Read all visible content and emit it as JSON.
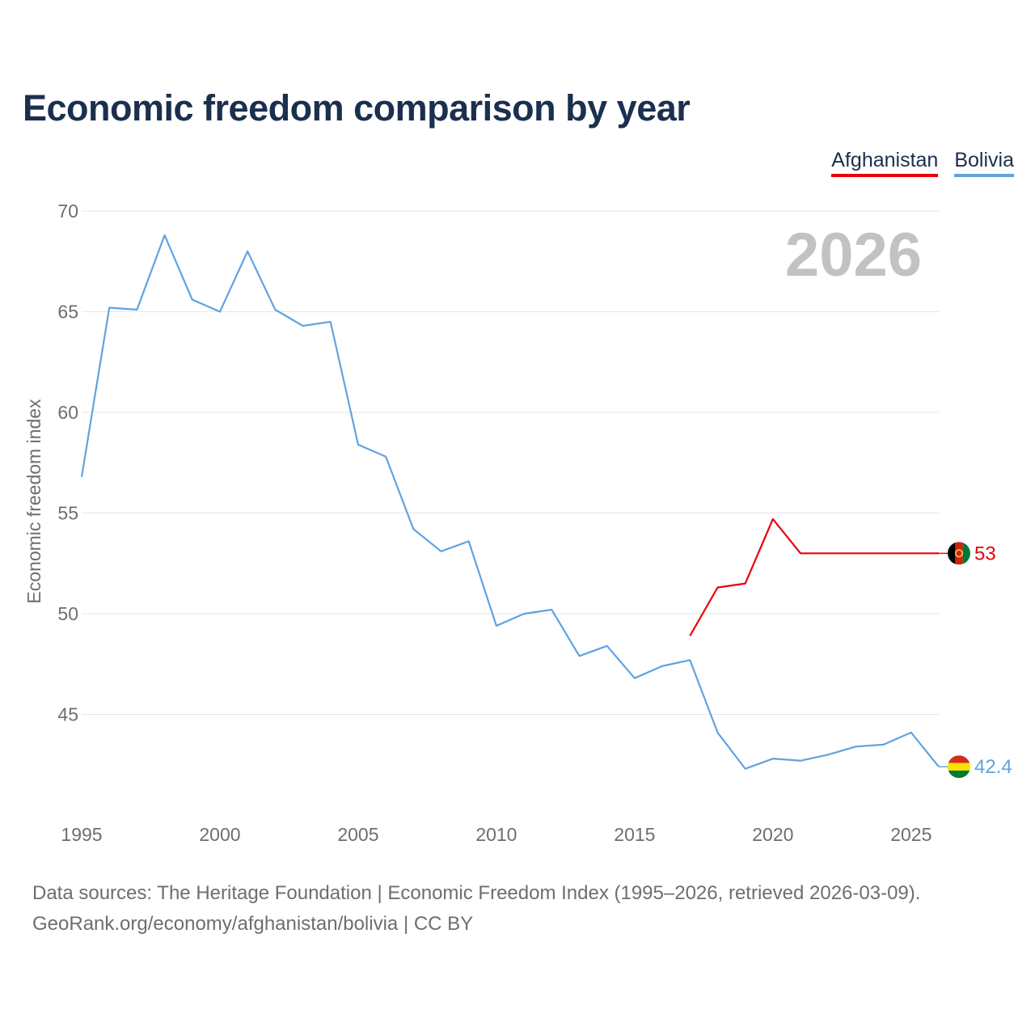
{
  "title": "Economic freedom comparison by year",
  "legend": [
    {
      "label": "Afghanistan",
      "color": "#e8000b"
    },
    {
      "label": "Bolivia",
      "color": "#5fa3e0"
    }
  ],
  "year_watermark": "2026",
  "source": {
    "line1": "Data sources: The Heritage Foundation | Economic Freedom Index (1995–2026, retrieved 2026-03-09).",
    "line2": "GeoRank.org/economy/afghanistan/bolivia | CC BY"
  },
  "chart_data": {
    "type": "line",
    "title": "Economic freedom comparison by year",
    "xlabel": "",
    "ylabel": "Economic freedom index",
    "xlim": [
      1995,
      2026
    ],
    "ylim": [
      41,
      70
    ],
    "x_ticks": [
      1995,
      2000,
      2005,
      2010,
      2015,
      2020,
      2025
    ],
    "y_ticks": [
      45,
      50,
      55,
      60,
      65,
      70
    ],
    "grid": true,
    "legend_position": "top-right",
    "series": [
      {
        "name": "Afghanistan",
        "color": "#e8000b",
        "end_label": "53",
        "points": [
          [
            2017,
            48.9
          ],
          [
            2018,
            51.3
          ],
          [
            2019,
            51.5
          ],
          [
            2020,
            54.7
          ],
          [
            2021,
            53.0
          ],
          [
            2022,
            53.0
          ],
          [
            2023,
            53.0
          ],
          [
            2024,
            53.0
          ],
          [
            2025,
            53.0
          ],
          [
            2026,
            53.0
          ]
        ]
      },
      {
        "name": "Bolivia",
        "color": "#5fa3e0",
        "end_label": "42.4",
        "points": [
          [
            1995,
            56.8
          ],
          [
            1996,
            65.2
          ],
          [
            1997,
            65.1
          ],
          [
            1998,
            68.8
          ],
          [
            1999,
            65.6
          ],
          [
            2000,
            65.0
          ],
          [
            2001,
            68.0
          ],
          [
            2002,
            65.1
          ],
          [
            2003,
            64.3
          ],
          [
            2004,
            64.5
          ],
          [
            2005,
            58.4
          ],
          [
            2006,
            57.8
          ],
          [
            2007,
            54.2
          ],
          [
            2008,
            53.1
          ],
          [
            2009,
            53.6
          ],
          [
            2010,
            49.4
          ],
          [
            2011,
            50.0
          ],
          [
            2012,
            50.2
          ],
          [
            2013,
            47.9
          ],
          [
            2014,
            48.4
          ],
          [
            2015,
            46.8
          ],
          [
            2016,
            47.4
          ],
          [
            2017,
            47.7
          ],
          [
            2018,
            44.1
          ],
          [
            2019,
            42.3
          ],
          [
            2020,
            42.8
          ],
          [
            2021,
            42.7
          ],
          [
            2022,
            43.0
          ],
          [
            2023,
            43.4
          ],
          [
            2024,
            43.5
          ],
          [
            2025,
            44.1
          ],
          [
            2026,
            42.4
          ]
        ]
      }
    ]
  }
}
